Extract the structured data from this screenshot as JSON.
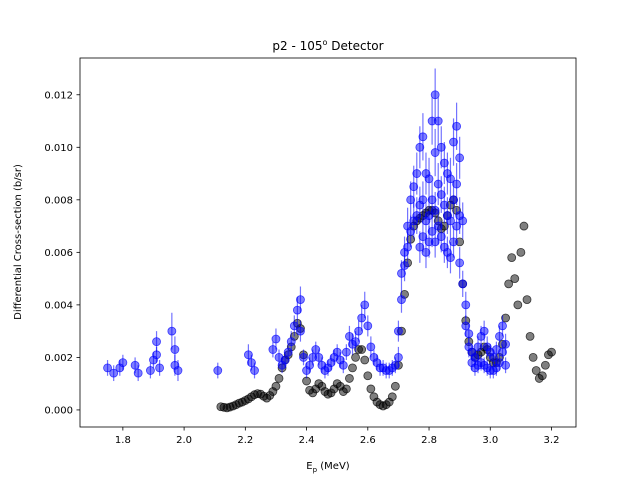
{
  "chart_data": {
    "type": "scatter",
    "title_main": "p2 - 105",
    "title_sup": "o",
    "title_tail": " Detector",
    "xlabel_main": "E",
    "xlabel_sub": "p",
    "xlabel_tail": " (MeV)",
    "ylabel": "Differential Cross-section (b/sr)",
    "xlim": [
      1.66,
      3.28
    ],
    "ylim": [
      -0.00065,
      0.0134
    ],
    "x_ticks": [
      "1.8",
      "2.0",
      "2.2",
      "2.4",
      "2.6",
      "2.8",
      "3.0",
      "3.2"
    ],
    "y_ticks": [
      "0.000",
      "0.002",
      "0.004",
      "0.006",
      "0.008",
      "0.010",
      "0.012"
    ],
    "grid": false,
    "series": [
      {
        "color": "#000000",
        "marker": "circle",
        "error_bars": false,
        "points": [
          [
            2.12,
            0.00012
          ],
          [
            2.13,
            0.0001
          ],
          [
            2.14,
            8e-05
          ],
          [
            2.15,
            0.00011
          ],
          [
            2.16,
            0.00015
          ],
          [
            2.17,
            0.0002
          ],
          [
            2.18,
            0.00026
          ],
          [
            2.19,
            0.0003
          ],
          [
            2.2,
            0.00036
          ],
          [
            2.21,
            0.00042
          ],
          [
            2.22,
            0.0005
          ],
          [
            2.23,
            0.00058
          ],
          [
            2.24,
            0.00062
          ],
          [
            2.25,
            0.0006
          ],
          [
            2.26,
            0.00052
          ],
          [
            2.27,
            0.00045
          ],
          [
            2.28,
            0.00055
          ],
          [
            2.29,
            0.0007
          ],
          [
            2.3,
            0.0009
          ],
          [
            2.31,
            0.0012
          ],
          [
            2.32,
            0.0016
          ],
          [
            2.33,
            0.0019
          ],
          [
            2.34,
            0.0021
          ],
          [
            2.35,
            0.0024
          ],
          [
            2.36,
            0.0028
          ],
          [
            2.37,
            0.0033
          ],
          [
            2.38,
            0.0031
          ],
          [
            2.39,
            0.0021
          ],
          [
            2.4,
            0.0011
          ],
          [
            2.41,
            0.00075
          ],
          [
            2.42,
            0.00065
          ],
          [
            2.43,
            0.0008
          ],
          [
            2.44,
            0.001
          ],
          [
            2.45,
            0.0009
          ],
          [
            2.46,
            0.0007
          ],
          [
            2.47,
            0.0006
          ],
          [
            2.48,
            0.00065
          ],
          [
            2.49,
            0.0008
          ],
          [
            2.5,
            0.001
          ],
          [
            2.51,
            0.0009
          ],
          [
            2.52,
            0.0007
          ],
          [
            2.53,
            0.0008
          ],
          [
            2.54,
            0.0012
          ],
          [
            2.55,
            0.0016
          ],
          [
            2.56,
            0.002
          ],
          [
            2.57,
            0.0023
          ],
          [
            2.58,
            0.0023
          ],
          [
            2.59,
            0.0019
          ],
          [
            2.6,
            0.0013
          ],
          [
            2.61,
            0.0008
          ],
          [
            2.62,
            0.0005
          ],
          [
            2.63,
            0.0003
          ],
          [
            2.64,
            0.0002
          ],
          [
            2.65,
            0.00015
          ],
          [
            2.66,
            0.0002
          ],
          [
            2.67,
            0.0003
          ],
          [
            2.68,
            0.0005
          ],
          [
            2.69,
            0.0009
          ],
          [
            2.7,
            0.0017
          ],
          [
            2.71,
            0.003
          ],
          [
            2.72,
            0.0044
          ],
          [
            2.73,
            0.0056
          ],
          [
            2.74,
            0.0065
          ],
          [
            2.75,
            0.007
          ],
          [
            2.76,
            0.0072
          ],
          [
            2.77,
            0.0073
          ],
          [
            2.78,
            0.0074
          ],
          [
            2.79,
            0.0075
          ],
          [
            2.8,
            0.0076
          ],
          [
            2.81,
            0.0076
          ],
          [
            2.82,
            0.0075
          ],
          [
            2.83,
            0.0072
          ],
          [
            2.84,
            0.0069
          ],
          [
            2.85,
            0.007
          ],
          [
            2.86,
            0.0074
          ],
          [
            2.87,
            0.0078
          ],
          [
            2.88,
            0.008
          ],
          [
            2.89,
            0.0076
          ],
          [
            2.9,
            0.0064
          ],
          [
            2.91,
            0.0048
          ],
          [
            2.92,
            0.0034
          ],
          [
            2.93,
            0.0026
          ],
          [
            2.94,
            0.0022
          ],
          [
            2.95,
            0.002
          ],
          [
            2.96,
            0.0021
          ],
          [
            2.97,
            0.0022
          ],
          [
            2.98,
            0.0024
          ],
          [
            2.99,
            0.0023
          ],
          [
            3.0,
            0.002
          ],
          [
            3.01,
            0.0018
          ],
          [
            3.02,
            0.0018
          ],
          [
            3.03,
            0.002
          ],
          [
            3.04,
            0.0025
          ],
          [
            3.05,
            0.0035
          ],
          [
            3.06,
            0.0048
          ],
          [
            3.07,
            0.0058
          ],
          [
            3.08,
            0.005
          ],
          [
            3.09,
            0.004
          ],
          [
            3.1,
            0.006
          ],
          [
            3.11,
            0.007
          ],
          [
            3.12,
            0.0042
          ],
          [
            3.13,
            0.0028
          ],
          [
            3.14,
            0.002
          ],
          [
            3.15,
            0.0015
          ],
          [
            3.16,
            0.0012
          ],
          [
            3.17,
            0.0013
          ],
          [
            3.18,
            0.0017
          ],
          [
            3.19,
            0.0021
          ],
          [
            3.2,
            0.0022
          ]
        ]
      },
      {
        "color": "#0000ff",
        "marker": "circle",
        "error_bars": true,
        "points": [
          [
            1.75,
            0.0016,
            0.0003
          ],
          [
            1.77,
            0.0014,
            0.0003
          ],
          [
            1.79,
            0.0016,
            0.0003
          ],
          [
            1.8,
            0.0018,
            0.0003
          ],
          [
            1.84,
            0.0017,
            0.0003
          ],
          [
            1.85,
            0.0014,
            0.0003
          ],
          [
            1.89,
            0.0015,
            0.0003
          ],
          [
            1.9,
            0.0019,
            0.0003
          ],
          [
            1.91,
            0.0026,
            0.0004
          ],
          [
            1.91,
            0.0021,
            0.0003
          ],
          [
            1.92,
            0.0016,
            0.0003
          ],
          [
            1.96,
            0.003,
            0.0007
          ],
          [
            1.97,
            0.0023,
            0.0005
          ],
          [
            1.97,
            0.0017,
            0.0004
          ],
          [
            1.98,
            0.0015,
            0.0004
          ],
          [
            2.11,
            0.0015,
            0.0003
          ],
          [
            2.21,
            0.0021,
            0.0004
          ],
          [
            2.22,
            0.0018,
            0.0003
          ],
          [
            2.23,
            0.0015,
            0.0003
          ],
          [
            2.29,
            0.0023,
            0.0003
          ],
          [
            2.3,
            0.0027,
            0.0004
          ],
          [
            2.31,
            0.002,
            0.0003
          ],
          [
            2.32,
            0.0017,
            0.0003
          ],
          [
            2.33,
            0.0019,
            0.0003
          ],
          [
            2.34,
            0.0022,
            0.0003
          ],
          [
            2.35,
            0.0026,
            0.0004
          ],
          [
            2.36,
            0.0032,
            0.0004
          ],
          [
            2.37,
            0.0038,
            0.0005
          ],
          [
            2.38,
            0.0042,
            0.0005
          ],
          [
            2.38,
            0.003,
            0.0004
          ],
          [
            2.39,
            0.002,
            0.0003
          ],
          [
            2.4,
            0.0015,
            0.0003
          ],
          [
            2.41,
            0.0017,
            0.0003
          ],
          [
            2.42,
            0.002,
            0.0003
          ],
          [
            2.43,
            0.0023,
            0.0003
          ],
          [
            2.44,
            0.002,
            0.0003
          ],
          [
            2.45,
            0.0017,
            0.0003
          ],
          [
            2.46,
            0.0015,
            0.0003
          ],
          [
            2.47,
            0.0016,
            0.0003
          ],
          [
            2.48,
            0.0018,
            0.0003
          ],
          [
            2.49,
            0.002,
            0.0003
          ],
          [
            2.5,
            0.0022,
            0.0003
          ],
          [
            2.51,
            0.0019,
            0.0003
          ],
          [
            2.52,
            0.0017,
            0.0003
          ],
          [
            2.53,
            0.0022,
            0.0003
          ],
          [
            2.54,
            0.0028,
            0.0004
          ],
          [
            2.55,
            0.0025,
            0.0004
          ],
          [
            2.56,
            0.0026,
            0.0004
          ],
          [
            2.57,
            0.003,
            0.0004
          ],
          [
            2.58,
            0.0035,
            0.0005
          ],
          [
            2.59,
            0.004,
            0.0005
          ],
          [
            2.6,
            0.0032,
            0.0004
          ],
          [
            2.61,
            0.0024,
            0.0004
          ],
          [
            2.62,
            0.002,
            0.0003
          ],
          [
            2.63,
            0.0018,
            0.0003
          ],
          [
            2.64,
            0.0016,
            0.0003
          ],
          [
            2.65,
            0.0016,
            0.0003
          ],
          [
            2.66,
            0.0015,
            0.0003
          ],
          [
            2.67,
            0.0015,
            0.0003
          ],
          [
            2.68,
            0.0016,
            0.0003
          ],
          [
            2.69,
            0.0017,
            0.0003
          ],
          [
            2.7,
            0.002,
            0.0004
          ],
          [
            2.7,
            0.003,
            0.0004
          ],
          [
            2.71,
            0.0042,
            0.0005
          ],
          [
            2.71,
            0.0052,
            0.0005
          ],
          [
            2.72,
            0.006,
            0.0006
          ],
          [
            2.72,
            0.0055,
            0.0006
          ],
          [
            2.73,
            0.007,
            0.0007
          ],
          [
            2.73,
            0.0062,
            0.0006
          ],
          [
            2.74,
            0.008,
            0.0007
          ],
          [
            2.74,
            0.0068,
            0.0006
          ],
          [
            2.75,
            0.0085,
            0.0008
          ],
          [
            2.75,
            0.0072,
            0.0007
          ],
          [
            2.76,
            0.009,
            0.0008
          ],
          [
            2.76,
            0.0074,
            0.0007
          ],
          [
            2.77,
            0.01,
            0.0008
          ],
          [
            2.77,
            0.0078,
            0.0007
          ],
          [
            2.77,
            0.0062,
            0.0006
          ],
          [
            2.78,
            0.0104,
            0.0009
          ],
          [
            2.78,
            0.008,
            0.0007
          ],
          [
            2.78,
            0.0066,
            0.0006
          ],
          [
            2.79,
            0.009,
            0.0008
          ],
          [
            2.79,
            0.0072,
            0.0007
          ],
          [
            2.79,
            0.006,
            0.0006
          ],
          [
            2.8,
            0.0088,
            0.0008
          ],
          [
            2.8,
            0.0074,
            0.0007
          ],
          [
            2.8,
            0.0064,
            0.0006
          ],
          [
            2.81,
            0.011,
            0.0009
          ],
          [
            2.81,
            0.008,
            0.0007
          ],
          [
            2.81,
            0.0068,
            0.0006
          ],
          [
            2.82,
            0.012,
            0.001
          ],
          [
            2.82,
            0.0098,
            0.0009
          ],
          [
            2.82,
            0.0076,
            0.0007
          ],
          [
            2.82,
            0.0064,
            0.0006
          ],
          [
            2.83,
            0.011,
            0.0009
          ],
          [
            2.83,
            0.0086,
            0.0008
          ],
          [
            2.83,
            0.007,
            0.0007
          ],
          [
            2.84,
            0.01,
            0.0008
          ],
          [
            2.84,
            0.0082,
            0.0007
          ],
          [
            2.84,
            0.0066,
            0.0006
          ],
          [
            2.85,
            0.0094,
            0.0008
          ],
          [
            2.85,
            0.0078,
            0.0007
          ],
          [
            2.85,
            0.0062,
            0.0006
          ],
          [
            2.86,
            0.009,
            0.0008
          ],
          [
            2.86,
            0.0074,
            0.0007
          ],
          [
            2.86,
            0.006,
            0.0006
          ],
          [
            2.87,
            0.0088,
            0.0008
          ],
          [
            2.87,
            0.0072,
            0.0007
          ],
          [
            2.87,
            0.0058,
            0.0006
          ],
          [
            2.88,
            0.0102,
            0.0009
          ],
          [
            2.88,
            0.008,
            0.0007
          ],
          [
            2.88,
            0.0064,
            0.0006
          ],
          [
            2.89,
            0.0108,
            0.0009
          ],
          [
            2.89,
            0.0086,
            0.0008
          ],
          [
            2.89,
            0.007,
            0.0007
          ],
          [
            2.9,
            0.0096,
            0.0008
          ],
          [
            2.9,
            0.0074,
            0.0007
          ],
          [
            2.9,
            0.0056,
            0.0006
          ],
          [
            2.91,
            0.0072,
            0.0007
          ],
          [
            2.91,
            0.0048,
            0.0005
          ],
          [
            2.92,
            0.004,
            0.0005
          ],
          [
            2.92,
            0.0032,
            0.0004
          ],
          [
            2.93,
            0.0029,
            0.0004
          ],
          [
            2.93,
            0.0024,
            0.0004
          ],
          [
            2.94,
            0.0022,
            0.0003
          ],
          [
            2.94,
            0.0018,
            0.0003
          ],
          [
            2.95,
            0.002,
            0.0003
          ],
          [
            2.95,
            0.0016,
            0.0003
          ],
          [
            2.96,
            0.0024,
            0.0004
          ],
          [
            2.96,
            0.0017,
            0.0003
          ],
          [
            2.97,
            0.0028,
            0.0004
          ],
          [
            2.97,
            0.0018,
            0.0003
          ],
          [
            2.98,
            0.003,
            0.0004
          ],
          [
            2.98,
            0.0017,
            0.0003
          ],
          [
            2.99,
            0.0024,
            0.0004
          ],
          [
            2.99,
            0.0016,
            0.0003
          ],
          [
            3.0,
            0.0022,
            0.0003
          ],
          [
            3.0,
            0.0015,
            0.0003
          ],
          [
            3.01,
            0.002,
            0.0003
          ],
          [
            3.01,
            0.0015,
            0.0003
          ],
          [
            3.02,
            0.0023,
            0.0003
          ],
          [
            3.02,
            0.0016,
            0.0003
          ],
          [
            3.03,
            0.0028,
            0.0004
          ],
          [
            3.03,
            0.0018,
            0.0003
          ],
          [
            3.04,
            0.0032,
            0.0004
          ],
          [
            3.04,
            0.0022,
            0.0003
          ],
          [
            3.05,
            0.0025,
            0.0004
          ],
          [
            3.05,
            0.0017,
            0.0003
          ]
        ]
      }
    ]
  }
}
